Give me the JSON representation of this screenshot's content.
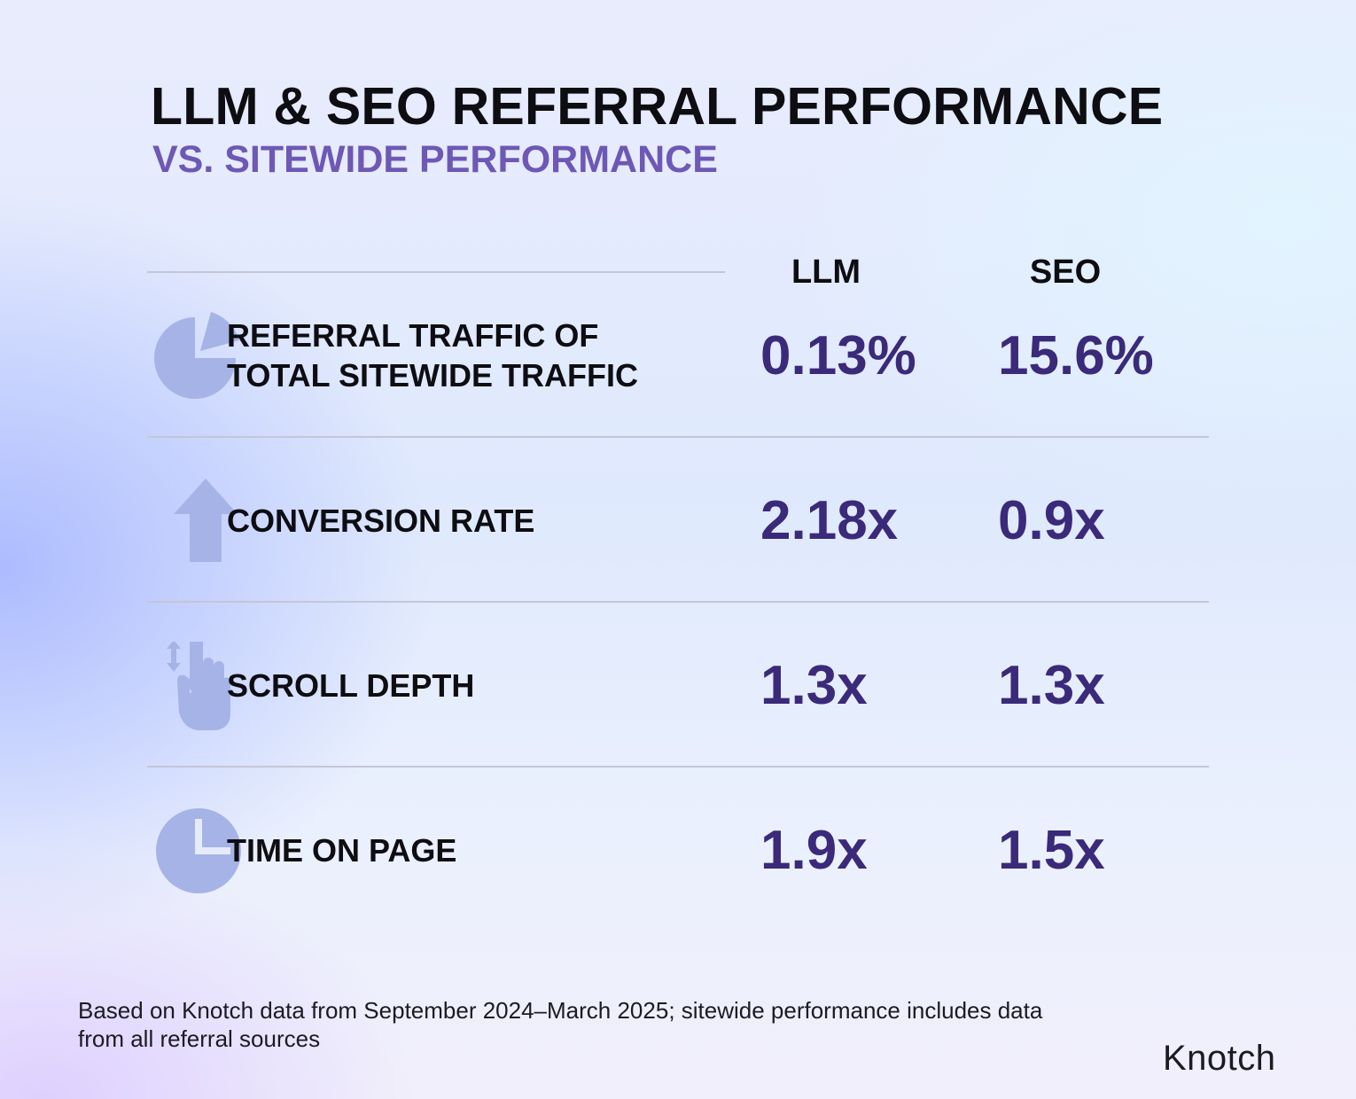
{
  "title": "LLM & SEO REFERRAL PERFORMANCE",
  "subtitle": "VS. SITEWIDE PERFORMANCE",
  "columns": {
    "llm": "LLM",
    "seo": "SEO"
  },
  "rows": [
    {
      "icon": "pie-chart-icon",
      "metric_lines": [
        "REFERRAL TRAFFIC OF",
        "TOTAL SITEWIDE TRAFFIC"
      ],
      "llm": "0.13%",
      "seo": "15.6%"
    },
    {
      "icon": "up-arrow-icon",
      "metric_lines": [
        "CONVERSION RATE"
      ],
      "llm": "2.18x",
      "seo": "0.9x"
    },
    {
      "icon": "scroll-hand-icon",
      "metric_lines": [
        "SCROLL DEPTH"
      ],
      "llm": "1.3x",
      "seo": "1.3x"
    },
    {
      "icon": "clock-icon",
      "metric_lines": [
        "TIME ON PAGE"
      ],
      "llm": "1.9x",
      "seo": "1.5x"
    }
  ],
  "chart_data": {
    "type": "table",
    "title": "LLM & SEO REFERRAL PERFORMANCE",
    "subtitle": "VS. SITEWIDE PERFORMANCE",
    "columns": [
      "LLM",
      "SEO"
    ],
    "rows": [
      {
        "metric": "REFERRAL TRAFFIC OF TOTAL SITEWIDE TRAFFIC",
        "LLM": "0.13%",
        "SEO": "15.6%"
      },
      {
        "metric": "CONVERSION RATE",
        "LLM": "2.18x",
        "SEO": "0.9x"
      },
      {
        "metric": "SCROLL DEPTH",
        "LLM": "1.3x",
        "SEO": "1.3x"
      },
      {
        "metric": "TIME ON PAGE",
        "LLM": "1.9x",
        "SEO": "1.5x"
      }
    ]
  },
  "footnote": "Based on Knotch data from September 2024–March 2025; sitewide performance includes data from all referral sources",
  "brand": {
    "logo_text": "Knotch",
    "icon_color": "#a6b3e6",
    "value_color": "#3a2a79",
    "accent": "#6e58b5"
  }
}
